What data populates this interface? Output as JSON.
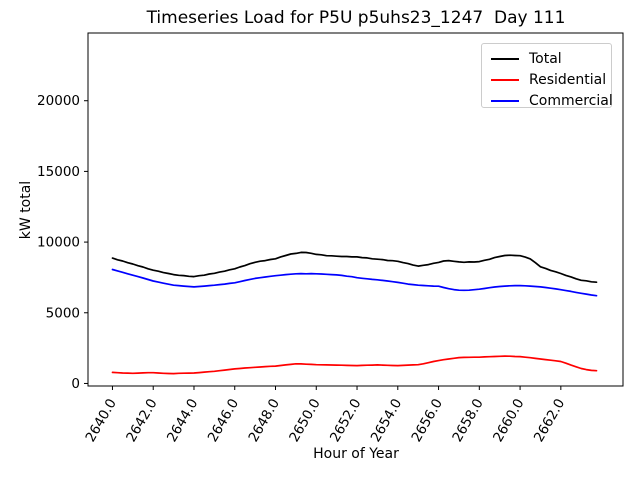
{
  "figure": {
    "title": "Timeseries Load for P5U p5uhs23_1247  Day 111",
    "xlabel": "Hour of Year",
    "ylabel": "kW total"
  },
  "chart_data": {
    "type": "line",
    "title": "Timeseries Load for P5U p5uhs23_1247  Day 111",
    "xlabel": "Hour of Year",
    "ylabel": "kW total",
    "grid": false,
    "legend_position": "upper right",
    "xlim": [
      2638.8,
      2665.05
    ],
    "ylim": [
      -180,
      24790
    ],
    "xtick_rotation": 60,
    "yticks": [
      {
        "value": 0,
        "label": "0"
      },
      {
        "value": 5000,
        "label": "5000"
      },
      {
        "value": 10000,
        "label": "10000"
      },
      {
        "value": 15000,
        "label": "15000"
      },
      {
        "value": 20000,
        "label": "20000"
      }
    ],
    "xticks": [
      {
        "value": 2640,
        "label": "2640.0"
      },
      {
        "value": 2642,
        "label": "2642.0"
      },
      {
        "value": 2644,
        "label": "2644.0"
      },
      {
        "value": 2646,
        "label": "2646.0"
      },
      {
        "value": 2648,
        "label": "2648.0"
      },
      {
        "value": 2650,
        "label": "2650.0"
      },
      {
        "value": 2652,
        "label": "2652.0"
      },
      {
        "value": 2654,
        "label": "2654.0"
      },
      {
        "value": 2656,
        "label": "2656.0"
      },
      {
        "value": 2658,
        "label": "2658.0"
      },
      {
        "value": 2660,
        "label": "2660.0"
      },
      {
        "value": 2662,
        "label": "2662.0"
      }
    ],
    "x": [
      2640.0,
      2640.25,
      2640.5,
      2640.75,
      2641.0,
      2641.25,
      2641.5,
      2641.75,
      2642.0,
      2642.25,
      2642.5,
      2642.75,
      2643.0,
      2643.25,
      2643.5,
      2643.75,
      2644.0,
      2644.25,
      2644.5,
      2644.75,
      2645.0,
      2645.25,
      2645.5,
      2645.75,
      2646.0,
      2646.25,
      2646.5,
      2646.75,
      2647.0,
      2647.25,
      2647.5,
      2647.75,
      2648.0,
      2648.25,
      2648.5,
      2648.75,
      2649.0,
      2649.25,
      2649.5,
      2649.75,
      2650.0,
      2650.25,
      2650.5,
      2650.75,
      2651.0,
      2651.25,
      2651.5,
      2651.75,
      2652.0,
      2652.25,
      2652.5,
      2652.75,
      2653.0,
      2653.25,
      2653.5,
      2653.75,
      2654.0,
      2654.25,
      2654.5,
      2654.75,
      2655.0,
      2655.25,
      2655.5,
      2655.75,
      2656.0,
      2656.25,
      2656.5,
      2656.75,
      2657.0,
      2657.25,
      2657.5,
      2657.75,
      2658.0,
      2658.25,
      2658.5,
      2658.75,
      2659.0,
      2659.25,
      2659.5,
      2659.75,
      2660.0,
      2660.25,
      2660.5,
      2660.75,
      2661.0,
      2661.25,
      2661.5,
      2661.75,
      2662.0,
      2662.25,
      2662.5,
      2662.75,
      2663.0,
      2663.25,
      2663.5,
      2663.75
    ],
    "series": [
      {
        "name": "Total",
        "color": "#000000",
        "values": [
          8870,
          8750,
          8660,
          8540,
          8450,
          8330,
          8240,
          8110,
          8010,
          7940,
          7840,
          7780,
          7700,
          7650,
          7630,
          7580,
          7560,
          7620,
          7660,
          7740,
          7790,
          7880,
          7940,
          8040,
          8110,
          8240,
          8340,
          8470,
          8570,
          8650,
          8690,
          8770,
          8820,
          8950,
          9050,
          9160,
          9200,
          9270,
          9260,
          9210,
          9130,
          9100,
          9040,
          9030,
          9000,
          8980,
          8980,
          8950,
          8950,
          8900,
          8880,
          8820,
          8790,
          8760,
          8700,
          8680,
          8640,
          8550,
          8480,
          8370,
          8300,
          8360,
          8410,
          8500,
          8560,
          8660,
          8690,
          8640,
          8600,
          8570,
          8600,
          8590,
          8620,
          8710,
          8780,
          8900,
          8980,
          9050,
          9070,
          9050,
          9040,
          8940,
          8810,
          8540,
          8250,
          8140,
          8000,
          7900,
          7780,
          7640,
          7540,
          7400,
          7300,
          7260,
          7190,
          7160
        ]
      },
      {
        "name": "Residential",
        "color": "#ff0000",
        "values": [
          780,
          760,
          740,
          730,
          720,
          735,
          750,
          760,
          760,
          740,
          720,
          705,
          700,
          715,
          725,
          735,
          740,
          765,
          800,
          830,
          860,
          900,
          945,
          990,
          1030,
          1060,
          1090,
          1115,
          1140,
          1165,
          1190,
          1210,
          1230,
          1270,
          1310,
          1350,
          1390,
          1380,
          1360,
          1345,
          1330,
          1320,
          1310,
          1305,
          1300,
          1290,
          1280,
          1270,
          1260,
          1275,
          1290,
          1300,
          1310,
          1300,
          1285,
          1270,
          1260,
          1280,
          1300,
          1315,
          1330,
          1390,
          1470,
          1550,
          1620,
          1680,
          1730,
          1780,
          1830,
          1845,
          1850,
          1855,
          1860,
          1875,
          1890,
          1905,
          1920,
          1935,
          1925,
          1910,
          1900,
          1860,
          1820,
          1775,
          1730,
          1690,
          1645,
          1600,
          1550,
          1430,
          1300,
          1180,
          1060,
          980,
          920,
          900
        ]
      },
      {
        "name": "Commercial",
        "color": "#0000ff",
        "values": [
          8060,
          7960,
          7860,
          7760,
          7660,
          7560,
          7460,
          7350,
          7250,
          7170,
          7090,
          7020,
          6950,
          6920,
          6890,
          6860,
          6830,
          6860,
          6890,
          6920,
          6950,
          6990,
          7030,
          7080,
          7120,
          7200,
          7280,
          7360,
          7430,
          7480,
          7530,
          7580,
          7620,
          7660,
          7700,
          7730,
          7760,
          7770,
          7760,
          7770,
          7760,
          7740,
          7720,
          7700,
          7680,
          7640,
          7590,
          7550,
          7480,
          7440,
          7400,
          7360,
          7330,
          7290,
          7250,
          7200,
          7150,
          7090,
          7030,
          6990,
          6950,
          6930,
          6910,
          6890,
          6880,
          6790,
          6700,
          6640,
          6600,
          6590,
          6600,
          6630,
          6670,
          6720,
          6770,
          6820,
          6860,
          6890,
          6910,
          6920,
          6920,
          6910,
          6890,
          6860,
          6830,
          6790,
          6740,
          6690,
          6630,
          6570,
          6510,
          6440,
          6380,
          6320,
          6260,
          6210
        ]
      }
    ]
  }
}
